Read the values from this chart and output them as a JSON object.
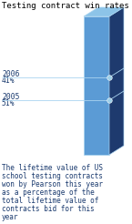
{
  "title": "Testing contract win rates",
  "caption": "The lifetime value of US school testing contracts won by Pearson this year as a percentage of the total lifetime value of contracts bid for this year",
  "bar_front_color": "#5b9bd5",
  "bar_side_color": "#1e3a6e",
  "bar_top_color": "#8dc4e8",
  "bar_grid_color": "#aad4f0",
  "label_2006_line1": "2006",
  "label_2006_line2": "41%",
  "label_2005_line1": "2005",
  "label_2005_line2": "51%",
  "val_2006": 41,
  "val_2005": 51,
  "background_color": "#ffffff",
  "title_color": "#000000",
  "text_color": "#1a3a6e",
  "dot_color": "#9dcfe8",
  "line_color": "#aad4f0",
  "caption_color": "#1a3a6e"
}
